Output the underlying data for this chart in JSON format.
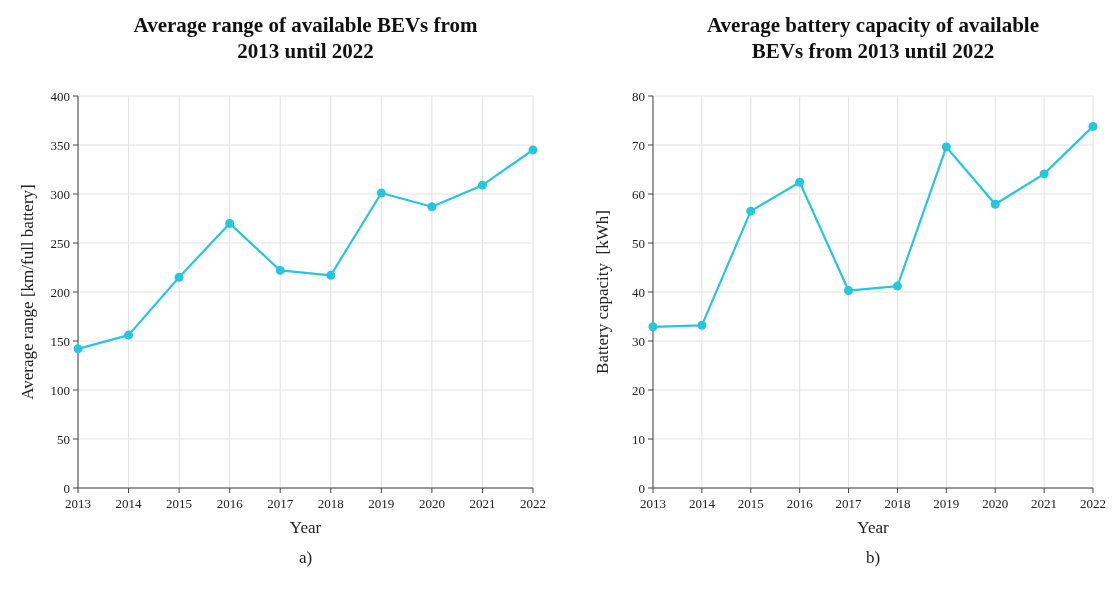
{
  "chart_data": [
    {
      "type": "line",
      "title": "Average range of available BEVs from 2013 until 2022",
      "xlabel": "Year",
      "ylabel": "Average range [km/full battery]",
      "annotations": [
        "a)"
      ],
      "x": [
        2013,
        2014,
        2015,
        2016,
        2017,
        2018,
        2019,
        2020,
        2021,
        2022
      ],
      "xlim": [
        2013,
        2022
      ],
      "xticks": [
        2013,
        2014,
        2015,
        2016,
        2017,
        2018,
        2019,
        2020,
        2021,
        2022
      ],
      "ylim": [
        0,
        400
      ],
      "yticks": [
        0,
        50,
        100,
        150,
        200,
        250,
        300,
        350,
        400
      ],
      "grid": true,
      "marker": "circle",
      "series": [
        {
          "color": "#26c6df",
          "values": [
            142,
            156,
            215,
            270,
            222,
            217,
            301,
            287,
            309,
            345
          ]
        }
      ]
    },
    {
      "type": "line",
      "title": "Average battery capacity of available BEVs from 2013 until 2022",
      "xlabel": "Year",
      "ylabel": "Battery capacity  [kWh]",
      "annotations": [
        "b)"
      ],
      "x": [
        2013,
        2014,
        2015,
        2016,
        2017,
        2018,
        2019,
        2020,
        2021,
        2022
      ],
      "xlim": [
        2013,
        2022
      ],
      "xticks": [
        2013,
        2014,
        2015,
        2016,
        2017,
        2018,
        2019,
        2020,
        2021,
        2022
      ],
      "ylim": [
        0,
        80
      ],
      "yticks": [
        0,
        10,
        20,
        30,
        40,
        50,
        60,
        70,
        80
      ],
      "grid": true,
      "marker": "circle",
      "series": [
        {
          "color": "#26c6df",
          "values": [
            32.9,
            33.2,
            56.5,
            62.4,
            40.3,
            41.2,
            69.6,
            57.9,
            64.1,
            73.8
          ]
        }
      ]
    }
  ]
}
